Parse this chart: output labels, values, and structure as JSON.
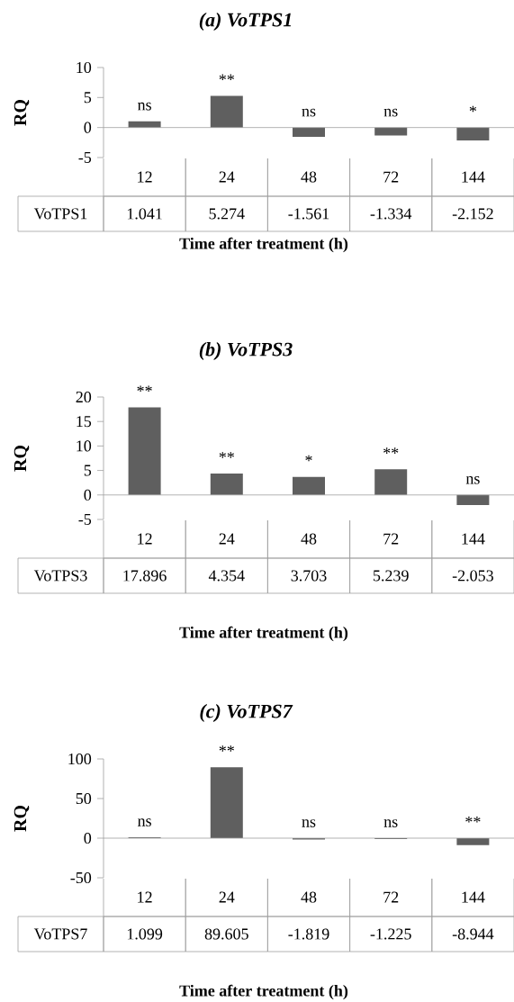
{
  "chart_data": [
    {
      "type": "bar",
      "title": "(a) VoTPS1",
      "xlabel": "Time after treatment (h)",
      "ylabel": "RQ",
      "categories": [
        "12",
        "24",
        "48",
        "72",
        "144"
      ],
      "series": [
        {
          "name": "VoTPS1",
          "color": "#5f5f5f",
          "values": [
            1.041,
            5.274,
            -1.561,
            -1.334,
            -2.152
          ]
        }
      ],
      "ylim": [
        -5,
        10
      ],
      "yticks": [
        -5,
        0,
        5,
        10
      ],
      "data_labels": true,
      "annotations": [
        "ns",
        "**",
        "ns",
        "ns",
        "*"
      ]
    },
    {
      "type": "bar",
      "title": "(b) VoTPS3",
      "xlabel": "Time after treatment (h)",
      "ylabel": "RQ",
      "categories": [
        "12",
        "24",
        "48",
        "72",
        "144"
      ],
      "series": [
        {
          "name": "VoTPS3",
          "color": "#5f5f5f",
          "values": [
            17.896,
            4.354,
            3.703,
            5.239,
            -2.053
          ]
        }
      ],
      "ylim": [
        -5,
        20
      ],
      "yticks": [
        -5,
        0,
        5,
        10,
        15,
        20
      ],
      "data_labels": true,
      "annotations": [
        "**",
        "**",
        "*",
        "**",
        "ns"
      ]
    },
    {
      "type": "bar",
      "title": "(c) VoTPS7",
      "xlabel": "Time after treatment (h)",
      "ylabel": "RQ",
      "categories": [
        "12",
        "24",
        "48",
        "72",
        "144"
      ],
      "series": [
        {
          "name": "VoTPS7",
          "color": "#5f5f5f",
          "values": [
            1.099,
            89.605,
            -1.819,
            -1.225,
            -8.944
          ]
        }
      ],
      "ylim": [
        -50,
        100
      ],
      "yticks": [
        -50,
        0,
        50,
        100
      ],
      "data_labels": true,
      "annotations": [
        "ns",
        "**",
        "ns",
        "ns",
        "**"
      ]
    }
  ]
}
